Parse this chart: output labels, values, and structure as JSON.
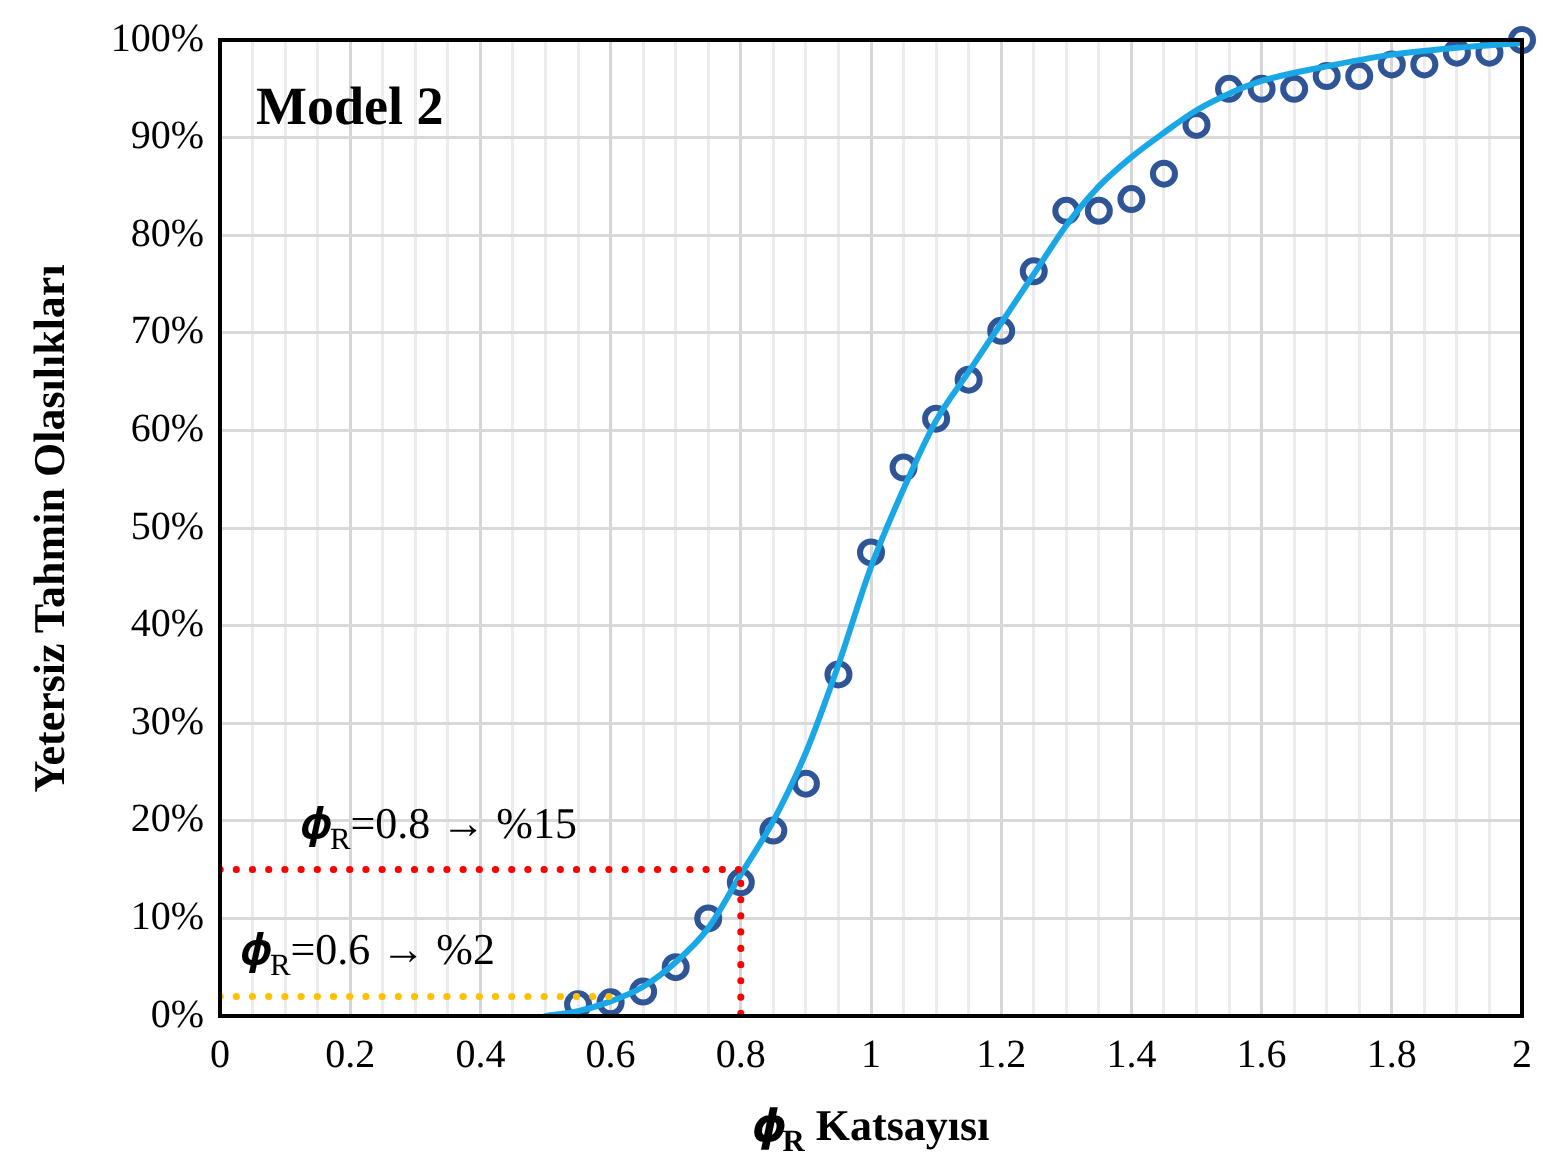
{
  "chart_data": {
    "type": "scatter",
    "title": "Model 2",
    "xlabel": "𝝓$_{R}$ Katsayısı",
    "ylabel": "Yetersiz Tahmin Olasılıkları",
    "xlim": [
      0,
      2
    ],
    "ylim": [
      0,
      100
    ],
    "xticks": [
      0,
      {
        "value": 0.05,
        "label": null
      },
      {
        "value": 0.1,
        "label": null
      },
      {
        "value": 0.15,
        "label": null
      },
      0.2,
      {
        "value": 0.25,
        "label": null
      },
      {
        "value": 0.3,
        "label": null
      },
      {
        "value": 0.35,
        "label": null
      },
      0.4,
      {
        "value": 0.45,
        "label": null
      },
      {
        "value": 0.5,
        "label": null
      },
      {
        "value": 0.55,
        "label": null
      },
      0.6,
      {
        "value": 0.65,
        "label": null
      },
      {
        "value": 0.7,
        "label": null
      },
      {
        "value": 0.75,
        "label": null
      },
      0.8,
      {
        "value": 0.85,
        "label": null
      },
      {
        "value": 0.9,
        "label": null
      },
      {
        "value": 0.95,
        "label": null
      },
      1,
      {
        "value": 1.05,
        "label": null
      },
      {
        "value": 1.1,
        "label": null
      },
      {
        "value": 1.15,
        "label": null
      },
      1.2,
      {
        "value": 1.25,
        "label": null
      },
      {
        "value": 1.3,
        "label": null
      },
      {
        "value": 1.35,
        "label": null
      },
      1.4,
      {
        "value": 1.45,
        "label": null
      },
      {
        "value": 1.5,
        "label": null
      },
      {
        "value": 1.55,
        "label": null
      },
      1.6,
      {
        "value": 1.65,
        "label": null
      },
      {
        "value": 1.7,
        "label": null
      },
      {
        "value": 1.75,
        "label": null
      },
      1.8,
      {
        "value": 1.85,
        "label": null
      },
      {
        "value": 1.9,
        "label": null
      },
      {
        "value": 1.95,
        "label": null
      },
      2
    ],
    "yticks": [
      {
        "value": 0,
        "label": "0%"
      },
      {
        "value": 10,
        "label": "10%"
      },
      {
        "value": 20,
        "label": "20%"
      },
      {
        "value": 30,
        "label": "30%"
      },
      {
        "value": 40,
        "label": "40%"
      },
      {
        "value": 50,
        "label": "50%"
      },
      {
        "value": 60,
        "label": "60%"
      },
      {
        "value": 70,
        "label": "70%"
      },
      {
        "value": 80,
        "label": "80%"
      },
      {
        "value": 90,
        "label": "90%"
      },
      {
        "value": 100,
        "label": "100%"
      }
    ],
    "grid": true,
    "legend": false,
    "series": [
      {
        "type": "line",
        "color": "#ff0000",
        "line_style": "dotted",
        "marker": "none",
        "x": [
          0,
          0.8,
          0.8
        ],
        "values": [
          15,
          15,
          0
        ]
      },
      {
        "type": "line",
        "color": "#ffc000",
        "line_style": "dotted",
        "marker": "none",
        "x": [
          0,
          0.6
        ],
        "values": [
          2,
          2
        ]
      },
      {
        "type": "line",
        "color": "#1aa7e6",
        "line_style": "solid",
        "marker": "none",
        "x": [
          0.5,
          0.55,
          0.6,
          0.65,
          0.7,
          0.75,
          0.8,
          0.85,
          0.9,
          0.95,
          1,
          1.05,
          1.1,
          1.15,
          1.2,
          1.25,
          1.3,
          1.35,
          1.4,
          1.45,
          1.5,
          1.55,
          1.6,
          1.7,
          1.8,
          1.9,
          2
        ],
        "values": [
          0,
          0.5,
          1.5,
          3,
          5.5,
          9,
          14.5,
          20,
          27,
          36,
          46,
          54,
          61,
          66,
          71,
          76,
          81,
          85,
          88,
          90.5,
          92.8,
          94.5,
          95.8,
          97.3,
          98.5,
          99.2,
          99.7
        ]
      },
      {
        "type": "scatter",
        "color": "#2f5597",
        "marker": "circle",
        "x": [
          0.55,
          0.6,
          0.65,
          0.7,
          0.75,
          0.8,
          0.85,
          0.9,
          0.95,
          1,
          1.05,
          1.1,
          1.15,
          1.2,
          1.25,
          1.3,
          1.35,
          1.4,
          1.45,
          1.5,
          1.55,
          1.6,
          1.65,
          1.7,
          1.75,
          1.8,
          1.85,
          1.9,
          1.95,
          2
        ],
        "values": [
          1.2,
          1.4,
          2.5,
          5,
          10,
          13.7,
          19,
          23.8,
          35,
          47.5,
          56.2,
          61.2,
          65.2,
          70.2,
          76.3,
          82.5,
          82.5,
          83.7,
          86.3,
          91.3,
          95,
          95,
          95,
          96.3,
          96.3,
          97.5,
          97.5,
          98.7,
          98.7,
          100
        ]
      }
    ],
    "annotations": [
      "𝝓$_{R}$=0.8 → %15",
      "𝝓$_{R}$=0.6 → %2"
    ]
  }
}
